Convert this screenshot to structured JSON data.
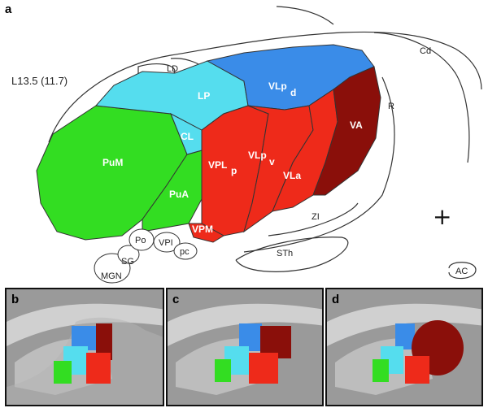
{
  "panel_a": {
    "label": "a",
    "level": "L13.5 (11.7)",
    "regions": {
      "LD": "LD",
      "LP": "LP",
      "VLpd": "VLp",
      "VLpd_sub": "d",
      "VA": "VA",
      "R": "R",
      "Cd": "Cd",
      "CL": "CL",
      "PuM": "PuM",
      "PuA": "PuA",
      "VPLp": "VPL",
      "VPLp_sub": "p",
      "VLpv": "VLp",
      "VLpv_sub": "v",
      "VLa": "VLa",
      "ZI": "ZI",
      "VPM": "VPM",
      "Po": "Po",
      "VPI": "VPI",
      "pc": "pc",
      "SG": "SG",
      "MGN": "MGN",
      "STh": "STh",
      "AC": "AC"
    },
    "cross_symbol": "+"
  },
  "colors": {
    "green": "#33dd22",
    "cyan": "#55ddee",
    "blue": "#3a8ce8",
    "red": "#ee2a1a",
    "darkred": "#8a0f0a"
  },
  "panels": [
    {
      "label": "b"
    },
    {
      "label": "c"
    },
    {
      "label": "d"
    }
  ]
}
